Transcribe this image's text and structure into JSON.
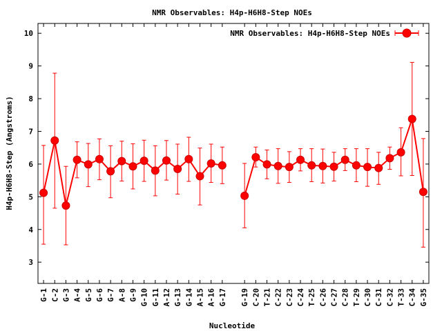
{
  "chart_data": {
    "type": "line",
    "title": "NMR Observables: H4p-H6H8-Step NOEs",
    "xlabel": "Nucleotide",
    "ylabel": "H4p-H6H8-Step (Angstroms)",
    "ylim": [
      2.35,
      10.3
    ],
    "yticks": [
      3,
      4,
      5,
      6,
      7,
      8,
      9,
      10
    ],
    "grid": false,
    "legend_position": "top-right",
    "color": "#ff0000",
    "series": [
      {
        "name": "NMR Observables: H4p-H6H8-Step NOEs",
        "points": [
          {
            "x": 1,
            "label": "G-1",
            "y": 5.12,
            "low": 3.55,
            "high": 6.57
          },
          {
            "x": 2,
            "label": "C-2",
            "y": 6.72,
            "low": 4.65,
            "high": 8.78
          },
          {
            "x": 3,
            "label": "G-3",
            "y": 4.73,
            "low": 3.53,
            "high": 5.93
          },
          {
            "x": 4,
            "label": "A-4",
            "y": 6.13,
            "low": 5.58,
            "high": 6.68
          },
          {
            "x": 5,
            "label": "G-5",
            "y": 5.99,
            "low": 5.31,
            "high": 6.63
          },
          {
            "x": 6,
            "label": "G-6",
            "y": 6.15,
            "low": 5.52,
            "high": 6.77
          },
          {
            "x": 7,
            "label": "G-7",
            "y": 5.78,
            "low": 4.97,
            "high": 6.56
          },
          {
            "x": 8,
            "label": "A-8",
            "y": 6.09,
            "low": 5.48,
            "high": 6.7
          },
          {
            "x": 9,
            "label": "G-9",
            "y": 5.93,
            "low": 5.24,
            "high": 6.62
          },
          {
            "x": 10,
            "label": "G-10",
            "y": 6.1,
            "low": 5.47,
            "high": 6.73
          },
          {
            "x": 11,
            "label": "G-11",
            "y": 5.8,
            "low": 5.03,
            "high": 6.56
          },
          {
            "x": 12,
            "label": "A-12",
            "y": 6.11,
            "low": 5.51,
            "high": 6.72
          },
          {
            "x": 13,
            "label": "G-13",
            "y": 5.85,
            "low": 5.08,
            "high": 6.61
          },
          {
            "x": 14,
            "label": "G-14",
            "y": 6.15,
            "low": 5.47,
            "high": 6.82
          },
          {
            "x": 15,
            "label": "A-15",
            "y": 5.63,
            "low": 4.75,
            "high": 6.49
          },
          {
            "x": 16,
            "label": "A-16",
            "y": 6.02,
            "low": 5.44,
            "high": 6.61
          },
          {
            "x": 17,
            "label": "G-17",
            "y": 5.96,
            "low": 5.4,
            "high": 6.52
          },
          {
            "x": 19,
            "label": "G-19",
            "y": 5.03,
            "low": 4.05,
            "high": 6.02
          },
          {
            "x": 20,
            "label": "C-20",
            "y": 6.21,
            "low": 5.91,
            "high": 6.52
          },
          {
            "x": 21,
            "label": "T-21",
            "y": 5.99,
            "low": 5.55,
            "high": 6.43
          },
          {
            "x": 22,
            "label": "C-22",
            "y": 5.94,
            "low": 5.41,
            "high": 6.47
          },
          {
            "x": 23,
            "label": "C-23",
            "y": 5.91,
            "low": 5.44,
            "high": 6.38
          },
          {
            "x": 24,
            "label": "C-24",
            "y": 6.13,
            "low": 5.79,
            "high": 6.47
          },
          {
            "x": 25,
            "label": "T-25",
            "y": 5.96,
            "low": 5.46,
            "high": 6.47
          },
          {
            "x": 26,
            "label": "C-26",
            "y": 5.94,
            "low": 5.42,
            "high": 6.46
          },
          {
            "x": 27,
            "label": "C-27",
            "y": 5.92,
            "low": 5.48,
            "high": 6.36
          },
          {
            "x": 28,
            "label": "C-28",
            "y": 6.13,
            "low": 5.8,
            "high": 6.47
          },
          {
            "x": 29,
            "label": "T-29",
            "y": 5.96,
            "low": 5.46,
            "high": 6.47
          },
          {
            "x": 30,
            "label": "C-30",
            "y": 5.91,
            "low": 5.32,
            "high": 6.47
          },
          {
            "x": 31,
            "label": "C-31",
            "y": 5.88,
            "low": 5.38,
            "high": 6.36
          },
          {
            "x": 32,
            "label": "C-32",
            "y": 6.18,
            "low": 5.84,
            "high": 6.52
          },
          {
            "x": 33,
            "label": "T-33",
            "y": 6.36,
            "low": 5.64,
            "high": 7.11
          },
          {
            "x": 34,
            "label": "C-34",
            "y": 7.38,
            "low": 5.65,
            "high": 9.11
          },
          {
            "x": 35,
            "label": "G-35",
            "y": 5.15,
            "low": 3.46,
            "high": 6.78
          }
        ]
      }
    ]
  }
}
